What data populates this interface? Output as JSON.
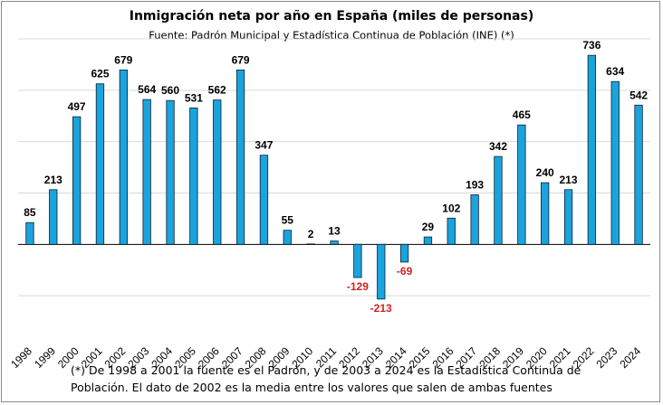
{
  "chart_data": {
    "type": "bar",
    "title": "Inmigración neta por año en España (miles de personas)",
    "subtitle": "Fuente: Padrón Municipal y Estadística Continua de Población (INE) (*)",
    "categories": [
      "1998",
      "1999",
      "2000",
      "2001",
      "2002",
      "2003",
      "2004",
      "2005",
      "2006",
      "2007",
      "2008",
      "2009",
      "2010",
      "2011",
      "2012",
      "2013",
      "2014",
      "2015",
      "2016",
      "2017",
      "2018",
      "2019",
      "2020",
      "2021",
      "2022",
      "2023",
      "2024"
    ],
    "values": [
      85,
      213,
      497,
      625,
      679,
      564,
      560,
      531,
      562,
      679,
      347,
      55,
      2,
      13,
      -129,
      -213,
      -69,
      29,
      102,
      193,
      342,
      465,
      240,
      213,
      736,
      634,
      542
    ],
    "ylim": [
      -400,
      800
    ],
    "grid": true,
    "xlabel": "",
    "ylabel": "",
    "colors": {
      "bar": "#1aa3dc",
      "bar_edge": "#0b2033",
      "positive_label": "#000000",
      "negative_label": "#d32020",
      "grid": "#d9d9d9"
    }
  },
  "footnote": {
    "line1": "(*) De 1998 a 2001 la fuente es el Padrón, y de 2003 a 2024 es la Estadística Continua de",
    "line2": "Población. El dato de 2002 es la media entre los valores que salen de ambas fuentes"
  }
}
